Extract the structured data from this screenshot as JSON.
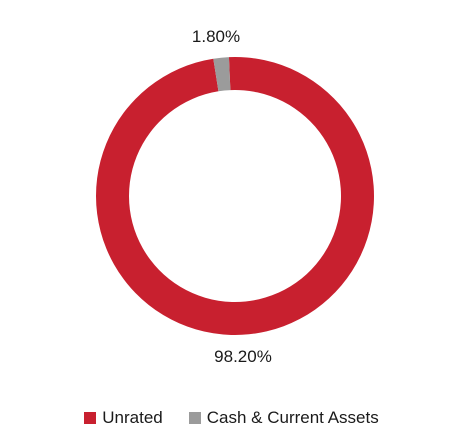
{
  "chart_data": {
    "type": "pie",
    "style": "donut",
    "categories": [
      "Unrated",
      "Cash & Current Assets"
    ],
    "values": [
      98.2,
      1.8
    ],
    "value_labels": [
      "98.20%",
      "1.80%"
    ],
    "colors": [
      "#c8202f",
      "#9b9b9b"
    ],
    "title": "",
    "legend_position": "bottom-center",
    "legend": [
      {
        "label": "Unrated",
        "color": "#c8202f"
      },
      {
        "label": "Cash & Current Assets",
        "color": "#9b9b9b"
      }
    ]
  }
}
